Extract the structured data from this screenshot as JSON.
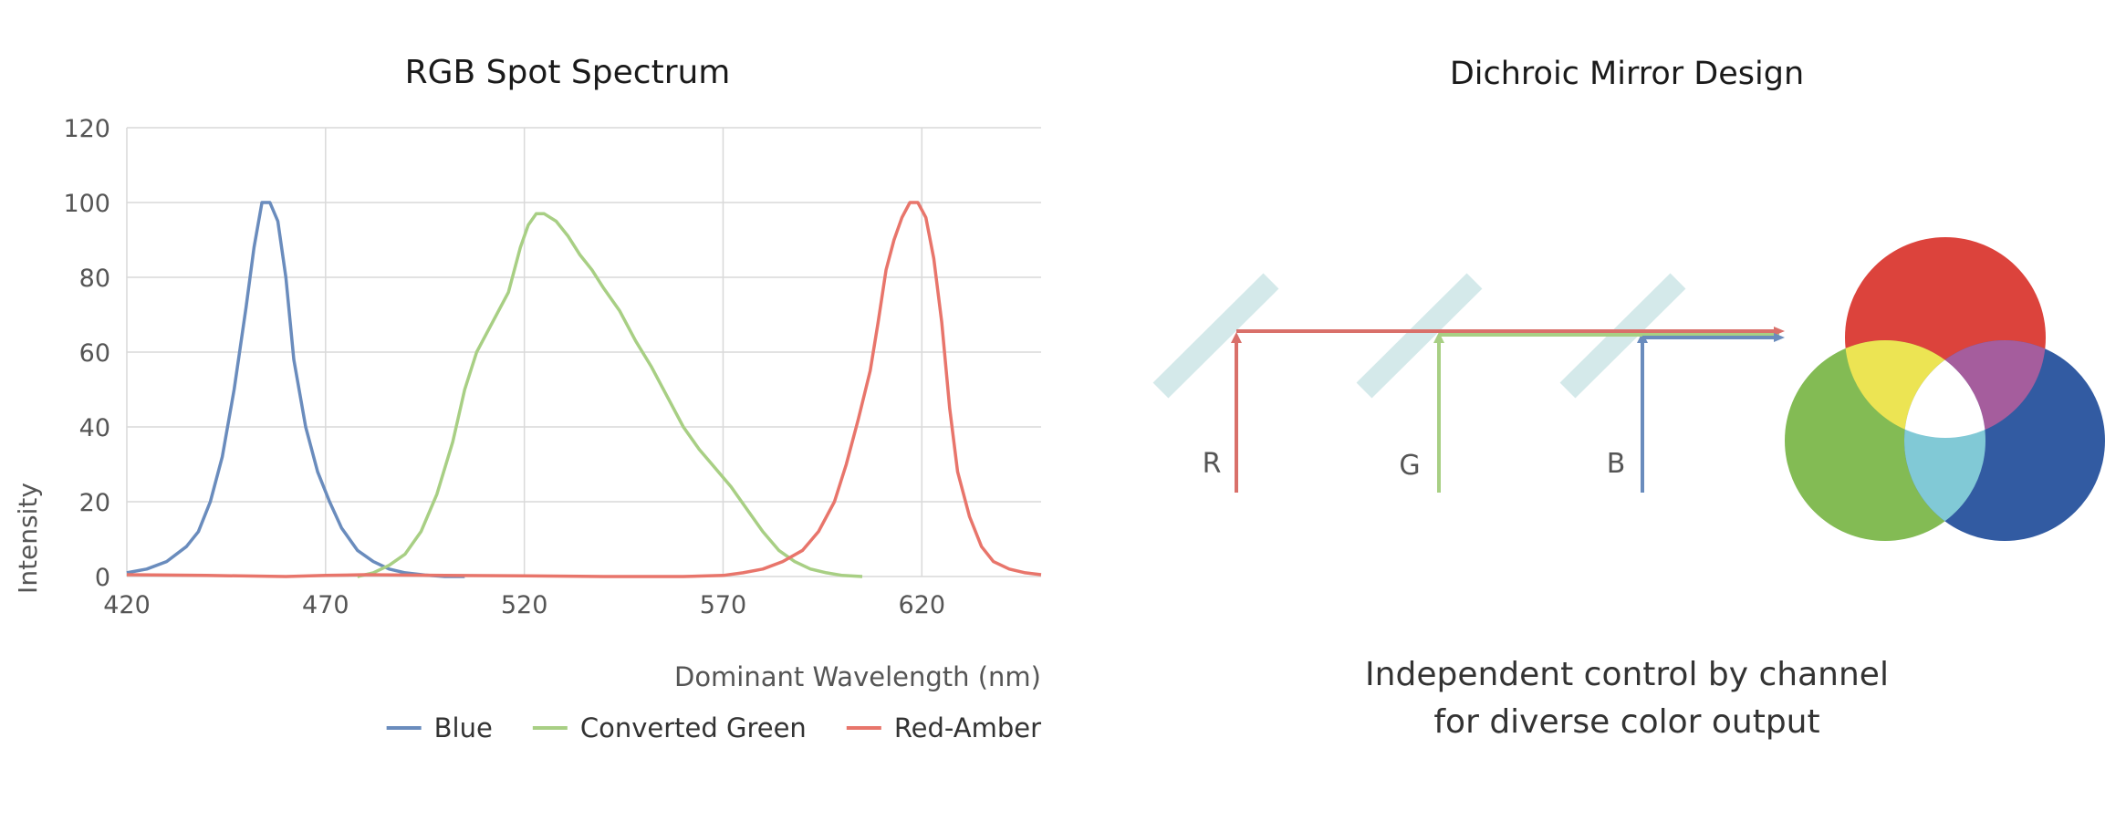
{
  "chart_panel": {
    "title": "RGB Spot Spectrum"
  },
  "chart_data": {
    "type": "line",
    "title": "RGB Spot Spectrum",
    "xlabel": "Dominant Wavelength (nm)",
    "ylabel": "Intensity",
    "xlim": [
      420,
      650
    ],
    "ylim": [
      0,
      120
    ],
    "x_ticks": [
      420,
      470,
      520,
      570,
      620
    ],
    "y_ticks": [
      0,
      20,
      40,
      60,
      80,
      100,
      120
    ],
    "grid": true,
    "legend_position": "bottom-right",
    "series": [
      {
        "name": "Blue",
        "color": "#6a8cbd",
        "points": [
          [
            420,
            1
          ],
          [
            425,
            2
          ],
          [
            430,
            4
          ],
          [
            435,
            8
          ],
          [
            438,
            12
          ],
          [
            441,
            20
          ],
          [
            444,
            32
          ],
          [
            447,
            50
          ],
          [
            450,
            72
          ],
          [
            452,
            88
          ],
          [
            454,
            100
          ],
          [
            456,
            100
          ],
          [
            458,
            95
          ],
          [
            460,
            80
          ],
          [
            462,
            58
          ],
          [
            465,
            40
          ],
          [
            468,
            28
          ],
          [
            471,
            20
          ],
          [
            474,
            13
          ],
          [
            478,
            7
          ],
          [
            482,
            4
          ],
          [
            486,
            2
          ],
          [
            490,
            1
          ],
          [
            495,
            0.4
          ],
          [
            500,
            0
          ],
          [
            505,
            0
          ]
        ]
      },
      {
        "name": "Converted Green",
        "color": "#a8cf84",
        "points": [
          [
            478,
            0
          ],
          [
            482,
            1
          ],
          [
            486,
            3
          ],
          [
            490,
            6
          ],
          [
            494,
            12
          ],
          [
            498,
            22
          ],
          [
            502,
            36
          ],
          [
            505,
            50
          ],
          [
            508,
            60
          ],
          [
            512,
            68
          ],
          [
            516,
            76
          ],
          [
            519,
            88
          ],
          [
            521,
            94
          ],
          [
            523,
            97
          ],
          [
            525,
            97
          ],
          [
            528,
            95
          ],
          [
            531,
            91
          ],
          [
            534,
            86
          ],
          [
            537,
            82
          ],
          [
            540,
            77
          ],
          [
            544,
            71
          ],
          [
            548,
            63
          ],
          [
            552,
            56
          ],
          [
            556,
            48
          ],
          [
            560,
            40
          ],
          [
            564,
            34
          ],
          [
            568,
            29
          ],
          [
            572,
            24
          ],
          [
            576,
            18
          ],
          [
            580,
            12
          ],
          [
            584,
            7
          ],
          [
            588,
            4
          ],
          [
            592,
            2
          ],
          [
            596,
            1
          ],
          [
            600,
            0.3
          ],
          [
            605,
            0
          ]
        ]
      },
      {
        "name": "Red-Amber",
        "color": "#e8756b",
        "points": [
          [
            420,
            0.5
          ],
          [
            440,
            0.3
          ],
          [
            460,
            0
          ],
          [
            470,
            0.3
          ],
          [
            480,
            0.5
          ],
          [
            500,
            0.3
          ],
          [
            520,
            0.2
          ],
          [
            540,
            0
          ],
          [
            560,
            0
          ],
          [
            570,
            0.3
          ],
          [
            575,
            1
          ],
          [
            580,
            2
          ],
          [
            585,
            4
          ],
          [
            590,
            7
          ],
          [
            594,
            12
          ],
          [
            598,
            20
          ],
          [
            601,
            30
          ],
          [
            604,
            42
          ],
          [
            607,
            55
          ],
          [
            609,
            68
          ],
          [
            611,
            82
          ],
          [
            613,
            90
          ],
          [
            615,
            96
          ],
          [
            617,
            100
          ],
          [
            619,
            100
          ],
          [
            621,
            96
          ],
          [
            623,
            85
          ],
          [
            625,
            68
          ],
          [
            627,
            45
          ],
          [
            629,
            28
          ],
          [
            632,
            16
          ],
          [
            635,
            8
          ],
          [
            638,
            4
          ],
          [
            642,
            2
          ],
          [
            646,
            1
          ],
          [
            650,
            0.5
          ]
        ]
      }
    ]
  },
  "diagram_panel": {
    "title": "Dichroic Mirror Design",
    "channel_labels": [
      "R",
      "G",
      "B"
    ],
    "caption_line1": "Independent control by channel",
    "caption_line2": "for diverse color output",
    "colors": {
      "mirror": "#d4e9ea",
      "red_beam": "#d9706a",
      "green_beam": "#a8cf84",
      "blue_beam": "#6a8cbd",
      "circle_red": "#dc433c",
      "circle_green": "#83bb54",
      "circle_blue": "#325ba2",
      "overlap_yellow": "#ece453",
      "overlap_magenta": "#a55d9d",
      "overlap_cyan": "#81c9d6",
      "overlap_white": "#ffffff"
    }
  }
}
